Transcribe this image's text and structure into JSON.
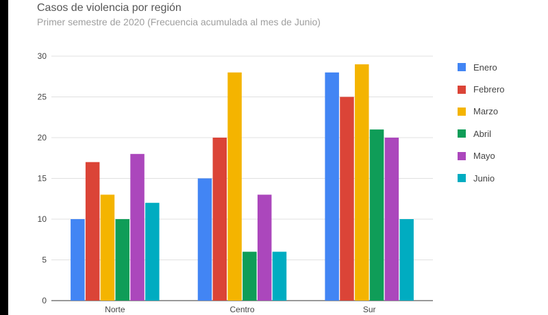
{
  "chart_data": {
    "type": "bar",
    "title": "Casos de violencia por región",
    "subtitle": "Primer semestre de 2020 (Frecuencia acumulada al mes de Junio)",
    "xlabel": "",
    "ylabel": "",
    "categories": [
      "Norte",
      "Centro",
      "Sur"
    ],
    "series": [
      {
        "name": "Enero",
        "color": "#4285f4",
        "values": [
          10,
          15,
          28
        ]
      },
      {
        "name": "Febrero",
        "color": "#db4437",
        "values": [
          17,
          20,
          25
        ]
      },
      {
        "name": "Marzo",
        "color": "#f4b400",
        "values": [
          13,
          28,
          29
        ]
      },
      {
        "name": "Abril",
        "color": "#0f9d58",
        "values": [
          10,
          6,
          21
        ]
      },
      {
        "name": "Mayo",
        "color": "#ab47bc",
        "values": [
          18,
          13,
          20
        ]
      },
      {
        "name": "Junio",
        "color": "#00acc1",
        "values": [
          12,
          6,
          10
        ]
      }
    ],
    "ylim": [
      0,
      30
    ],
    "yticks": [
      0,
      5,
      10,
      15,
      20,
      25,
      30
    ],
    "grid": true,
    "legend_position": "right"
  }
}
